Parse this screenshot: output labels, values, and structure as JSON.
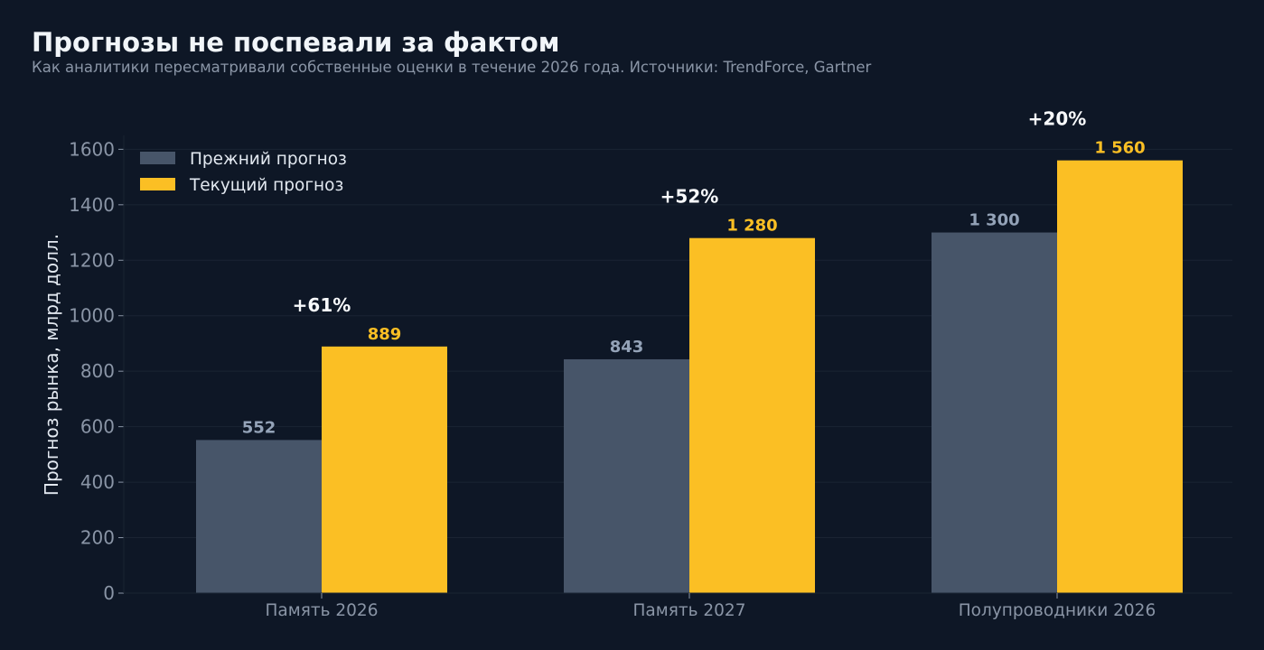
{
  "title": "Прогнозы не поспевали за фактом",
  "subtitle": "Как аналитики пересматривали собственные оценки в течение 2026 года. Источники: TrendForce, Gartner",
  "chart_data": {
    "type": "bar",
    "categories": [
      "Память 2026",
      "Память 2027",
      "Полупроводники 2026"
    ],
    "series": [
      {
        "name": "Прежний прогноз",
        "values": [
          552,
          843,
          1300
        ],
        "labels": [
          "552",
          "843",
          "1 300"
        ],
        "color": "#475569"
      },
      {
        "name": "Текущий прогноз",
        "values": [
          889,
          1280,
          1560
        ],
        "labels": [
          "889",
          "1 280",
          "1 560"
        ],
        "color": "#fbbf24"
      }
    ],
    "annotations": [
      "+61%",
      "+52%",
      "+20%"
    ],
    "ylabel": "Прогноз рынка, млрд долл.",
    "xlabel": "",
    "ylim": [
      0,
      1650
    ],
    "yticks": [
      0,
      200,
      400,
      600,
      800,
      1000,
      1200,
      1400,
      1600
    ],
    "grid": true,
    "legend_position": "top-left"
  },
  "colors": {
    "background": "#0e1726",
    "grid": "#1a2433",
    "axis_text": "#8a95a6",
    "text_light": "#e2e8f0",
    "annotation": "#f8fafc"
  }
}
